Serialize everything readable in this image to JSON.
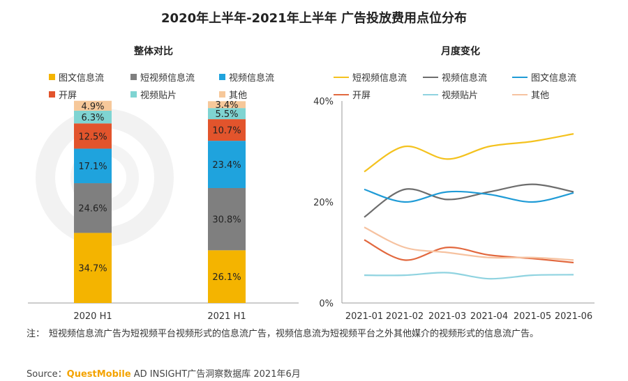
{
  "title": "2020年上半年-2021年上半年 广告投放费用点位分布",
  "left_panel": {
    "title": "整体对比",
    "legend": [
      {
        "label": "图文信息流",
        "color": "#f4b400"
      },
      {
        "label": "短视频信息流",
        "color": "#7f7f7f"
      },
      {
        "label": "视频信息流",
        "color": "#1fa3dd"
      },
      {
        "label": "开屏",
        "color": "#e2542c"
      },
      {
        "label": "视频贴片",
        "color": "#7fd4d2"
      },
      {
        "label": "其他",
        "color": "#f6c89a"
      }
    ]
  },
  "right_panel": {
    "title": "月度变化",
    "legend": [
      {
        "label": "短视频信息流",
        "color": "#f4c21e"
      },
      {
        "label": "视频信息流",
        "color": "#6d6d6d"
      },
      {
        "label": "图文信息流",
        "color": "#1f9bd6"
      },
      {
        "label": "开屏",
        "color": "#e2683e"
      },
      {
        "label": "视频贴片",
        "color": "#8fd3e0"
      },
      {
        "label": "其他",
        "color": "#f6c2a0"
      }
    ]
  },
  "chart_data": [
    {
      "type": "bar",
      "stacked": true,
      "categories": [
        "2020 H1",
        "2021 H1"
      ],
      "series": [
        {
          "name": "图文信息流",
          "values": [
            34.7,
            26.1
          ],
          "labels": [
            "34.7%",
            "26.1%"
          ]
        },
        {
          "name": "短视频信息流",
          "values": [
            24.6,
            30.8
          ],
          "labels": [
            "24.6%",
            "30.8%"
          ]
        },
        {
          "name": "视频信息流",
          "values": [
            17.1,
            23.4
          ],
          "labels": [
            "17.1%",
            "23.4%"
          ]
        },
        {
          "name": "开屏",
          "values": [
            12.5,
            10.7
          ],
          "labels": [
            "12.5%",
            "10.7%"
          ]
        },
        {
          "name": "视频贴片",
          "values": [
            6.3,
            5.5
          ],
          "labels": [
            "6.3%",
            "5.5%"
          ]
        },
        {
          "name": "其他",
          "values": [
            4.9,
            3.4
          ],
          "labels": [
            "4.9%",
            "3.4%"
          ]
        }
      ],
      "ylim": [
        0,
        100
      ]
    },
    {
      "type": "line",
      "x": [
        "2021-01",
        "2021-02",
        "2021-03",
        "2021-04",
        "2021-05",
        "2021-06"
      ],
      "yticks": [
        "0%",
        "20%",
        "40%"
      ],
      "ylim": [
        0,
        40
      ],
      "series": [
        {
          "name": "短视频信息流",
          "values": [
            26.0,
            31.0,
            28.5,
            31.0,
            32.0,
            33.5
          ]
        },
        {
          "name": "视频信息流",
          "values": [
            17.0,
            22.5,
            20.5,
            22.0,
            23.5,
            22.0
          ]
        },
        {
          "name": "图文信息流",
          "values": [
            22.5,
            20.0,
            22.0,
            21.5,
            20.0,
            21.8
          ]
        },
        {
          "name": "开屏",
          "values": [
            12.5,
            8.5,
            11.0,
            9.5,
            8.8,
            8.0
          ]
        },
        {
          "name": "视频贴片",
          "values": [
            5.5,
            5.5,
            6.0,
            4.8,
            5.5,
            5.6
          ]
        },
        {
          "name": "其他",
          "values": [
            15.0,
            11.0,
            10.0,
            9.0,
            9.0,
            8.5
          ]
        }
      ],
      "grid": false
    }
  ],
  "note": {
    "label": "注：",
    "text": "短视频信息流广告为短视频平台视频形式的信息流广告，视频信息流为短视频平台之外其他媒介的视频形式的信息流广告。"
  },
  "source": {
    "prefix": "Source：",
    "brand": "QuestMobile",
    "rest": " AD INSIGHT广告洞察数据库 2021年6月"
  }
}
